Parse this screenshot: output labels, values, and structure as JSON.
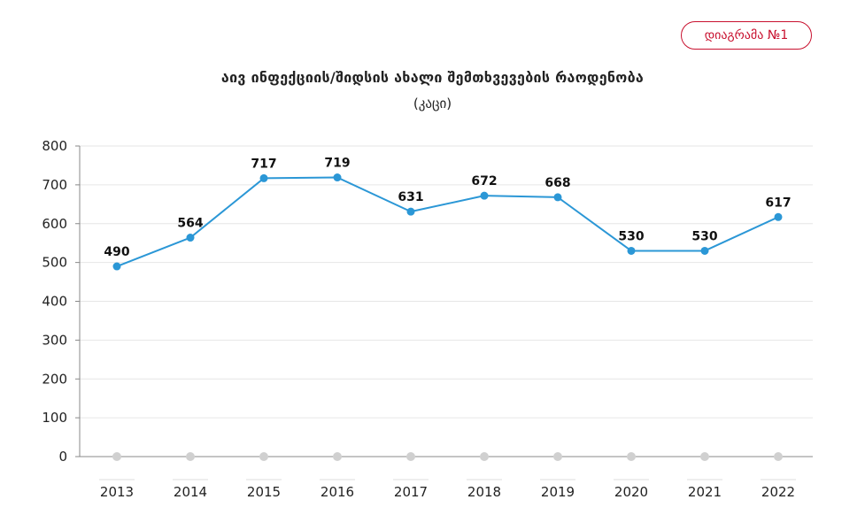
{
  "header": {
    "badge_label": "დიაგრამა №1"
  },
  "chart_data": {
    "type": "line",
    "title": "აივ ინფექციის/შიდსის ახალი შემთხვევების რაოდენობა",
    "subtitle": "(კაცი)",
    "xlabel": "",
    "ylabel": "",
    "categories": [
      "2013",
      "2014",
      "2015",
      "2016",
      "2017",
      "2018",
      "2019",
      "2020",
      "2021",
      "2022"
    ],
    "series": [
      {
        "values": [
          490,
          564,
          717,
          719,
          631,
          672,
          668,
          530,
          530,
          617
        ]
      }
    ],
    "ylim": [
      0,
      800
    ],
    "yticks": [
      0,
      100,
      200,
      300,
      400,
      500,
      600,
      700,
      800
    ],
    "grid": true,
    "legend": "none",
    "colors": {
      "line": "#2b97d6",
      "point": "#2b97d6",
      "baseline_marker": "#d0d0d0",
      "grid": "#e6e6e6",
      "axis": "#888888"
    }
  }
}
